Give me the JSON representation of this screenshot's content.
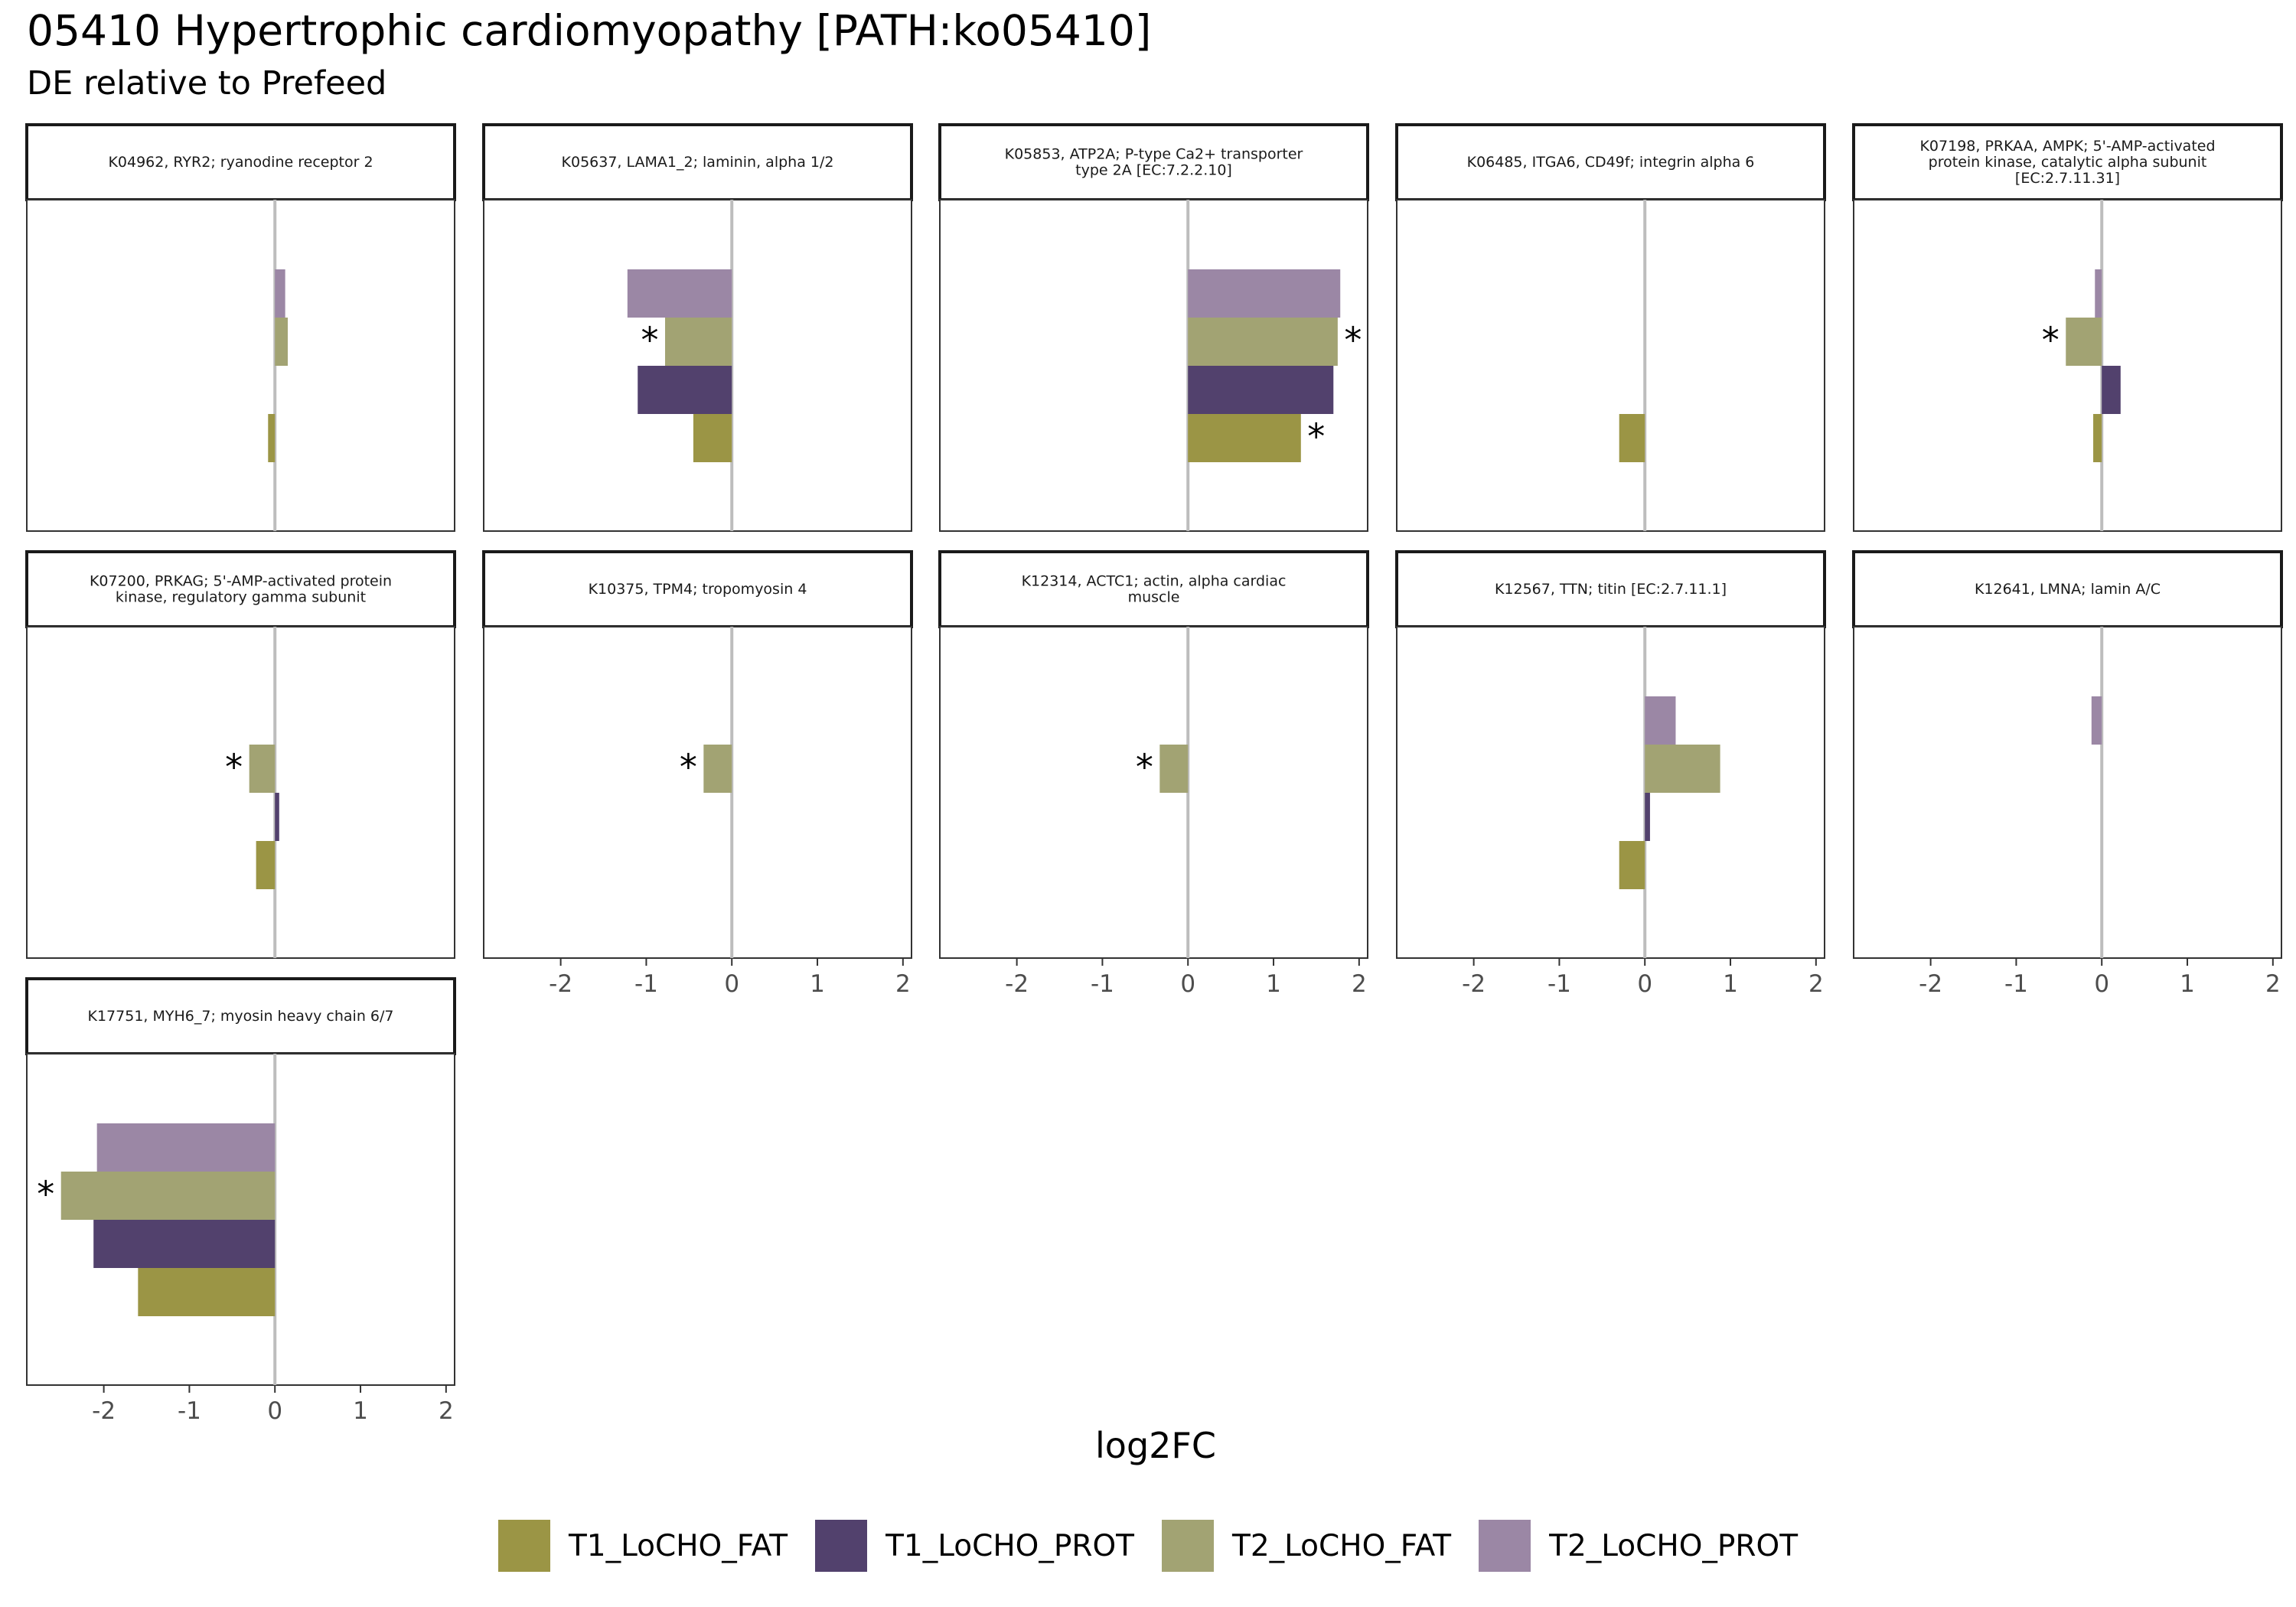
{
  "title": "05410 Hypertrophic cardiomyopathy [PATH:ko05410]",
  "subtitle": "DE relative to Prefeed",
  "chart_data": {
    "type": "bar",
    "orientation": "horizontal",
    "facet_layout": "5 columns, 3 rows",
    "xlabel": "log2FC",
    "xlim": [
      -2.9,
      2.1
    ],
    "xticks": [
      -2,
      -1,
      0,
      1,
      2
    ],
    "grid": false,
    "legend_position": "bottom",
    "significance_marker": "*",
    "series": [
      {
        "name": "T1_LoCHO_FAT",
        "color": "#9b9545"
      },
      {
        "name": "T1_LoCHO_PROT",
        "color": "#52416d"
      },
      {
        "name": "T2_LoCHO_FAT",
        "color": "#a2a373"
      },
      {
        "name": "T2_LoCHO_PROT",
        "color": "#9b87a5"
      }
    ],
    "panels": [
      {
        "strip": [
          "K04962, RYR2; ryanodine receptor 2"
        ],
        "values": [
          -0.08,
          null,
          0.15,
          0.12
        ],
        "significant": [
          false,
          false,
          false,
          false
        ]
      },
      {
        "strip": [
          "K05637, LAMA1_2; laminin, alpha 1/2"
        ],
        "values": [
          -0.45,
          -1.1,
          -0.78,
          -1.22
        ],
        "significant": [
          false,
          false,
          true,
          false
        ]
      },
      {
        "strip": [
          "K05853, ATP2A; P-type Ca2+ transporter",
          "type 2A [EC:7.2.2.10]"
        ],
        "values": [
          1.32,
          1.7,
          1.75,
          1.78
        ],
        "significant": [
          true,
          false,
          true,
          false
        ]
      },
      {
        "strip": [
          "K06485, ITGA6, CD49f; integrin alpha 6"
        ],
        "values": [
          -0.3,
          null,
          null,
          null
        ],
        "significant": [
          false,
          false,
          false,
          false
        ]
      },
      {
        "strip": [
          "K07198, PRKAA, AMPK; 5'-AMP-activated",
          "protein kinase, catalytic alpha subunit",
          "[EC:2.7.11.31]"
        ],
        "values": [
          -0.1,
          0.22,
          -0.42,
          -0.08
        ],
        "significant": [
          false,
          false,
          true,
          false
        ]
      },
      {
        "strip": [
          "K07200, PRKAG; 5'-AMP-activated protein",
          "kinase, regulatory gamma subunit"
        ],
        "values": [
          -0.22,
          0.05,
          -0.3,
          null
        ],
        "significant": [
          false,
          false,
          true,
          false
        ]
      },
      {
        "strip": [
          "K10375, TPM4; tropomyosin 4"
        ],
        "values": [
          null,
          null,
          -0.33,
          null
        ],
        "significant": [
          false,
          false,
          true,
          false
        ]
      },
      {
        "strip": [
          "K12314, ACTC1; actin, alpha cardiac",
          "muscle"
        ],
        "values": [
          null,
          null,
          -0.33,
          null
        ],
        "significant": [
          false,
          false,
          true,
          false
        ]
      },
      {
        "strip": [
          "K12567, TTN; titin [EC:2.7.11.1]"
        ],
        "values": [
          -0.3,
          0.06,
          0.88,
          0.36
        ],
        "significant": [
          false,
          false,
          false,
          false
        ]
      },
      {
        "strip": [
          "K12641, LMNA; lamin A/C"
        ],
        "values": [
          null,
          null,
          null,
          -0.12
        ],
        "significant": [
          false,
          false,
          false,
          false
        ]
      },
      {
        "strip": [
          "K17751, MYH6_7; myosin heavy chain 6/7"
        ],
        "values": [
          -1.6,
          -2.12,
          -2.5,
          -2.08
        ],
        "significant": [
          false,
          false,
          true,
          false
        ]
      }
    ]
  }
}
